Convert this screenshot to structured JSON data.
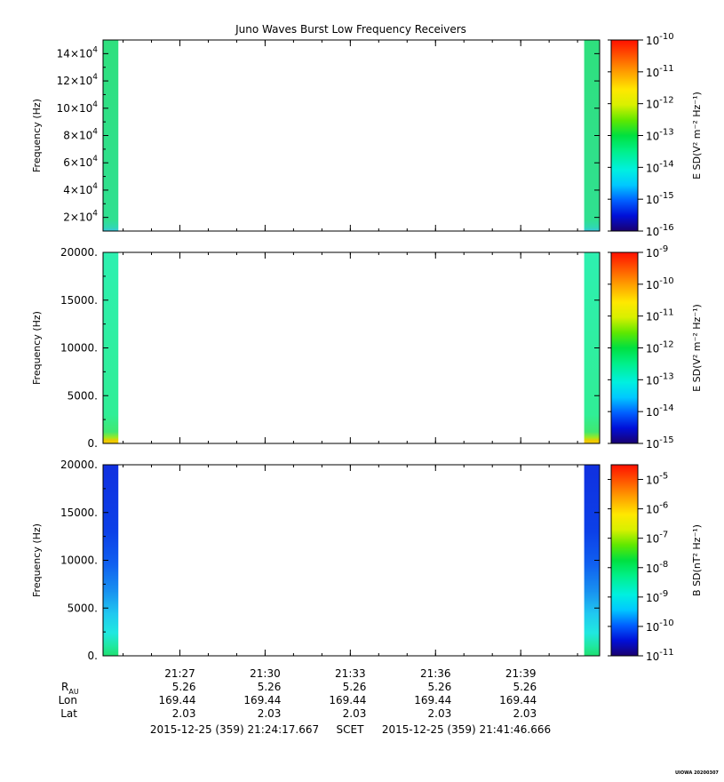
{
  "title": "Juno Waves Burst Low Frequency Receivers",
  "chart_data": [
    {
      "type": "heatmap",
      "name": "panel-1",
      "ylabel": "Frequency (Hz)",
      "yscale": "linear",
      "ylim": [
        10000,
        150000
      ],
      "yticks": [
        {
          "value": 20000,
          "mantissa": "2×10",
          "exp": "4"
        },
        {
          "value": 40000,
          "mantissa": "4×10",
          "exp": "4"
        },
        {
          "value": 60000,
          "mantissa": "6×10",
          "exp": "4"
        },
        {
          "value": 80000,
          "mantissa": "8×10",
          "exp": "4"
        },
        {
          "value": 100000,
          "mantissa": "10×10",
          "exp": "4"
        },
        {
          "value": 120000,
          "mantissa": "12×10",
          "exp": "4"
        },
        {
          "value": 140000,
          "mantissa": "14×10",
          "exp": "4"
        }
      ],
      "colorbar": {
        "label": "E SD(V² m⁻² Hz⁻¹)",
        "scale": "log",
        "range_exp": [
          -16,
          -10
        ],
        "tick_exps": [
          -16,
          -15,
          -14,
          -13,
          -12,
          -11,
          -10
        ]
      },
      "data_bursts": [
        {
          "t_start": "21:24:17.667",
          "t_end": "21:24:50",
          "dominant_log10": -13.6
        },
        {
          "t_start": "21:41:14",
          "t_end": "21:41:46.666",
          "dominant_log10": -13.6
        }
      ]
    },
    {
      "type": "heatmap",
      "name": "panel-2",
      "ylabel": "Frequency (Hz)",
      "yscale": "linear",
      "ylim": [
        0,
        20000
      ],
      "yticks": [
        {
          "value": 0,
          "label": "0."
        },
        {
          "value": 5000,
          "label": "5000."
        },
        {
          "value": 10000,
          "label": "10000."
        },
        {
          "value": 15000,
          "label": "15000."
        },
        {
          "value": 20000,
          "label": "20000."
        }
      ],
      "colorbar": {
        "label": "E SD(V² m⁻² Hz⁻¹)",
        "scale": "log",
        "range_exp": [
          -15,
          -9
        ],
        "tick_exps": [
          -15,
          -14,
          -13,
          -12,
          -11,
          -10,
          -9
        ]
      },
      "data_bursts": [
        {
          "t_start": "21:24:17.667",
          "t_end": "21:24:50",
          "dominant_log10": -13.0
        },
        {
          "t_start": "21:41:14",
          "t_end": "21:41:46.666",
          "dominant_log10": -13.0
        }
      ]
    },
    {
      "type": "heatmap",
      "name": "panel-3",
      "ylabel": "Frequency (Hz)",
      "yscale": "linear",
      "ylim": [
        0,
        20000
      ],
      "yticks": [
        {
          "value": 0,
          "label": "0."
        },
        {
          "value": 5000,
          "label": "5000."
        },
        {
          "value": 10000,
          "label": "10000."
        },
        {
          "value": 15000,
          "label": "15000."
        },
        {
          "value": 20000,
          "label": "20000."
        }
      ],
      "colorbar": {
        "label": "B SD(nT² Hz⁻¹)",
        "scale": "log",
        "range_exp": [
          -11,
          -4.5
        ],
        "tick_exps": [
          -11,
          -10,
          -9,
          -8,
          -7,
          -6,
          -5
        ]
      },
      "data_bursts": [
        {
          "t_start": "21:24:17.667",
          "t_end": "21:24:50",
          "dominant_log10": -10.2
        },
        {
          "t_start": "21:41:14",
          "t_end": "21:41:46.666",
          "dominant_log10": -10.2
        }
      ]
    }
  ],
  "time_axis": {
    "start": "21:24:17.667",
    "end": "21:41:46.666",
    "ticks": [
      "21:27",
      "21:30",
      "21:33",
      "21:36",
      "21:39"
    ]
  },
  "ephemeris": {
    "row_labels": {
      "r": "R",
      "r_sub": "AU",
      "lon": "Lon",
      "lat": "Lat"
    },
    "r": [
      "5.26",
      "5.26",
      "5.26",
      "5.26",
      "5.26"
    ],
    "lon": [
      "169.44",
      "169.44",
      "169.44",
      "169.44",
      "169.44"
    ],
    "lat": [
      "2.03",
      "2.03",
      "2.03",
      "2.03",
      "2.03"
    ]
  },
  "footer": {
    "start": "2015-12-25 (359) 21:24:17.667",
    "frame": "SCET",
    "end": "2015-12-25 (359) 21:41:46.666"
  },
  "credit": "UIOWA 20200307",
  "colors": {
    "burst_panel1": "#2fe07e",
    "burst_panel2": "#2ef0a8",
    "burst_panel3": "#1430e0",
    "axis": "#000000",
    "background": "#ffffff"
  }
}
